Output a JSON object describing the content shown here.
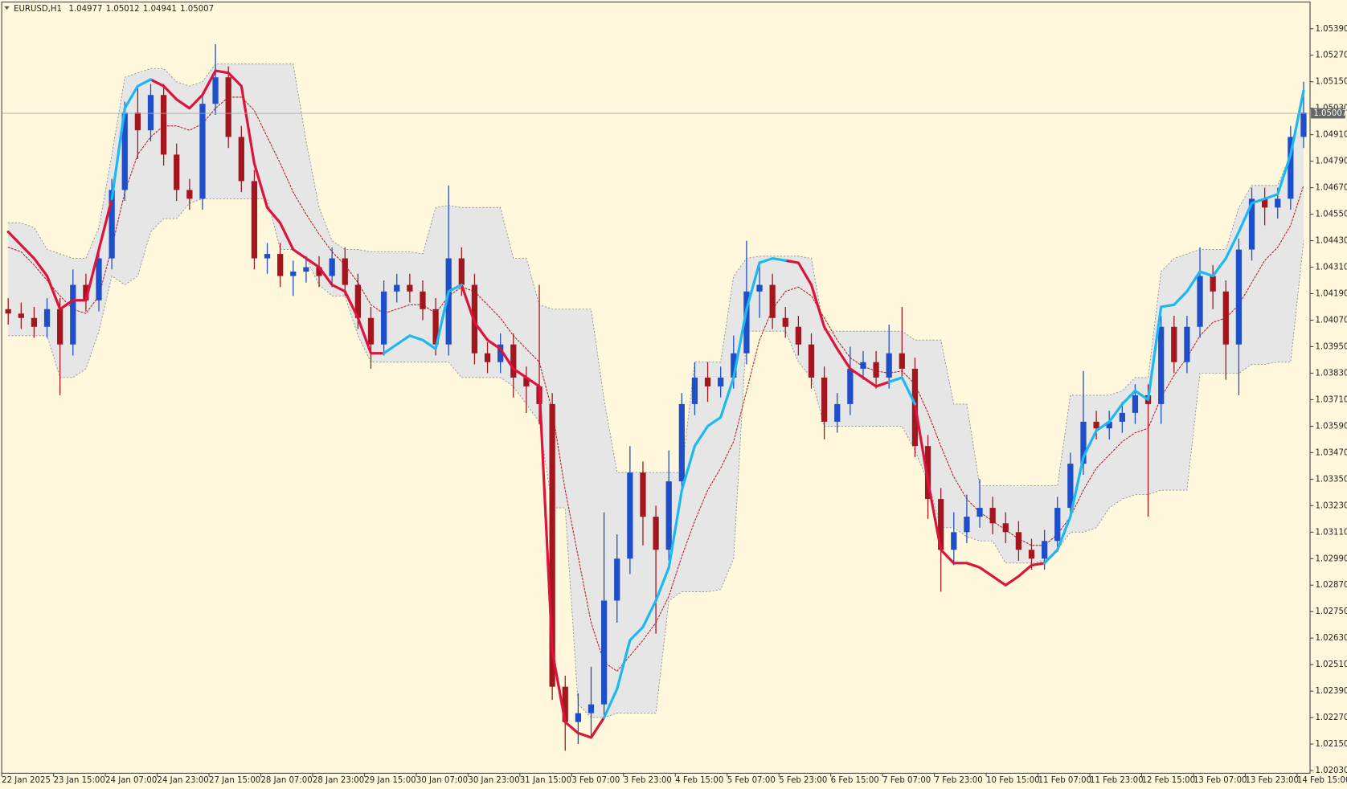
{
  "chart_data": {
    "type": "candlestick",
    "title": "EURUSD,H1",
    "ohlc": [
      1.04977,
      1.05012,
      1.04941,
      1.05007
    ],
    "categories": [
      "22 Jan 2025",
      null,
      null,
      null,
      "23 Jan 15:00",
      null,
      null,
      null,
      "24 Jan 07:00",
      null,
      null,
      null,
      "24 Jan 23:00",
      null,
      null,
      null,
      "27 Jan 15:00",
      null,
      null,
      null,
      "28 Jan 07:00",
      null,
      null,
      null,
      "28 Jan 23:00",
      null,
      null,
      null,
      "29 Jan 15:00",
      null,
      null,
      null,
      "30 Jan 07:00",
      null,
      null,
      null,
      "30 Jan 23:00",
      null,
      null,
      null,
      "31 Jan 15:00",
      null,
      null,
      null,
      "3 Feb 07:00",
      null,
      null,
      null,
      "3 Feb 23:00",
      null,
      null,
      null,
      "4 Feb 15:00",
      null,
      null,
      null,
      "5 Feb 07:00",
      null,
      null,
      null,
      "5 Feb 23:00",
      null,
      null,
      null,
      "6 Feb 15:00",
      null,
      null,
      null,
      "7 Feb 07:00",
      null,
      null,
      null,
      "7 Feb 23:00",
      null,
      null,
      null,
      "10 Feb 15:00",
      null,
      null,
      null,
      "11 Feb 07:00",
      null,
      null,
      null,
      "11 Feb 23:00",
      null,
      null,
      null,
      "12 Feb 15:00",
      null,
      null,
      null,
      "13 Feb 07:00",
      null,
      null,
      null,
      "13 Feb 23:00",
      null,
      null,
      null,
      "14 Feb 15:00"
    ],
    "open": [
      1.0412,
      1.041,
      1.0408,
      1.0404,
      1.0412,
      1.0396,
      1.0423,
      1.0416,
      1.0435,
      1.0466,
      1.0501,
      1.0493,
      1.0509,
      1.0482,
      1.0466,
      1.0462,
      1.0505,
      1.0517,
      1.049,
      1.047,
      1.0435,
      1.0437,
      1.0427,
      1.0429,
      1.0431,
      1.0427,
      1.0435,
      1.0423,
      1.0408,
      1.0396,
      1.042,
      1.0423,
      1.042,
      1.0412,
      1.0396,
      1.0435,
      1.0423,
      1.0392,
      1.0388,
      1.0396,
      1.0381,
      1.0377,
      1.0369,
      1.0241,
      1.0225,
      1.0229,
      1.0233,
      1.028,
      1.0299,
      1.0338,
      1.0318,
      1.0303,
      1.0334,
      1.0369,
      1.0381,
      1.0377,
      1.0381,
      1.0392,
      1.042,
      1.0423,
      1.0408,
      1.0404,
      1.0396,
      1.0381,
      1.0361,
      1.0369,
      1.0385,
      1.0388,
      1.0381,
      1.0392,
      1.0385,
      1.035,
      1.0326,
      1.0303,
      1.0311,
      1.0318,
      1.0322,
      1.0315,
      1.0311,
      1.0303,
      1.0299,
      1.0307,
      1.0322,
      1.0342,
      1.0361,
      1.0358,
      1.0361,
      1.0365,
      1.0373,
      1.0369,
      1.0404,
      1.0388,
      1.0404,
      1.0427,
      1.042,
      1.0396,
      1.0439,
      1.0462,
      1.0458,
      1.0462,
      1.049
    ],
    "high": [
      1.0417,
      1.0415,
      1.0413,
      1.0417,
      1.0417,
      1.043,
      1.0428,
      1.044,
      1.0471,
      1.0506,
      1.0512,
      1.0514,
      1.0514,
      1.0487,
      1.0471,
      1.051,
      1.0532,
      1.0522,
      1.0495,
      1.0475,
      1.0442,
      1.0442,
      1.0434,
      1.0436,
      1.0436,
      1.044,
      1.044,
      1.0428,
      1.0413,
      1.0425,
      1.0428,
      1.0428,
      1.0425,
      1.0417,
      1.0468,
      1.044,
      1.0428,
      1.0397,
      1.0401,
      1.0401,
      1.0386,
      1.0423,
      1.0374,
      1.0246,
      1.0238,
      1.025,
      1.032,
      1.031,
      1.035,
      1.0343,
      1.0323,
      1.0348,
      1.0374,
      1.0388,
      1.0388,
      1.0386,
      1.04,
      1.0443,
      1.0432,
      1.0428,
      1.0413,
      1.0409,
      1.0401,
      1.0386,
      1.0374,
      1.0395,
      1.0393,
      1.0393,
      1.0405,
      1.0413,
      1.039,
      1.0355,
      1.0331,
      1.032,
      1.0328,
      1.0335,
      1.0327,
      1.032,
      1.0316,
      1.0308,
      1.0312,
      1.0327,
      1.0347,
      1.0384,
      1.0366,
      1.0366,
      1.037,
      1.0378,
      1.0378,
      1.0409,
      1.0409,
      1.0409,
      1.044,
      1.0432,
      1.0425,
      1.0444,
      1.0467,
      1.0467,
      1.0467,
      1.0495,
      1.0515
    ],
    "low": [
      1.0405,
      1.0403,
      1.0399,
      1.0399,
      1.0373,
      1.0391,
      1.0411,
      1.0411,
      1.043,
      1.0461,
      1.048,
      1.0488,
      1.0477,
      1.0461,
      1.0457,
      1.0457,
      1.05,
      1.0485,
      1.0465,
      1.043,
      1.0428,
      1.0422,
      1.0418,
      1.0424,
      1.0422,
      1.0422,
      1.0418,
      1.0403,
      1.0385,
      1.0391,
      1.0415,
      1.0415,
      1.0407,
      1.0391,
      1.0391,
      1.0418,
      1.0387,
      1.0383,
      1.0383,
      1.0372,
      1.0365,
      1.036,
      1.0235,
      1.0212,
      1.0215,
      1.0218,
      1.0228,
      1.027,
      1.0292,
      1.0305,
      1.0265,
      1.0298,
      1.0329,
      1.0364,
      1.037,
      1.0372,
      1.0376,
      1.0387,
      1.0408,
      1.0403,
      1.0399,
      1.0391,
      1.0376,
      1.0353,
      1.0356,
      1.0364,
      1.038,
      1.0376,
      1.0376,
      1.038,
      1.0345,
      1.0317,
      1.0284,
      1.0296,
      1.0306,
      1.0313,
      1.031,
      1.0306,
      1.0298,
      1.0294,
      1.0294,
      1.0302,
      1.0317,
      1.0337,
      1.0353,
      1.0353,
      1.0356,
      1.036,
      1.0318,
      1.036,
      1.0383,
      1.0383,
      1.0399,
      1.0412,
      1.038,
      1.0373,
      1.0434,
      1.045,
      1.0453,
      1.0457,
      1.0485
    ],
    "close": [
      1.041,
      1.0408,
      1.0404,
      1.0412,
      1.0396,
      1.0423,
      1.0416,
      1.0435,
      1.0466,
      1.0501,
      1.0493,
      1.0509,
      1.0482,
      1.0466,
      1.0462,
      1.0505,
      1.0517,
      1.049,
      1.047,
      1.0435,
      1.0437,
      1.0427,
      1.0429,
      1.0431,
      1.0427,
      1.0435,
      1.0423,
      1.0408,
      1.0396,
      1.042,
      1.0423,
      1.042,
      1.0412,
      1.0396,
      1.0435,
      1.0423,
      1.0392,
      1.0388,
      1.0396,
      1.0381,
      1.0377,
      1.0369,
      1.0241,
      1.0225,
      1.0229,
      1.0233,
      1.028,
      1.0299,
      1.0338,
      1.0318,
      1.0303,
      1.0334,
      1.0369,
      1.0381,
      1.0377,
      1.0381,
      1.0392,
      1.042,
      1.0423,
      1.0408,
      1.0404,
      1.0396,
      1.0381,
      1.0361,
      1.0369,
      1.0385,
      1.0388,
      1.0381,
      1.0392,
      1.0385,
      1.035,
      1.0326,
      1.0303,
      1.0311,
      1.0318,
      1.0322,
      1.0315,
      1.0311,
      1.0303,
      1.0299,
      1.0307,
      1.0322,
      1.0342,
      1.0361,
      1.0358,
      1.0361,
      1.0365,
      1.0373,
      1.0369,
      1.0404,
      1.0388,
      1.0404,
      1.0427,
      1.042,
      1.0396,
      1.0439,
      1.0462,
      1.0458,
      1.0462,
      1.049,
      1.0501
    ],
    "up_color": "#1e4fc8",
    "down_color": "#a3161e",
    "band": {
      "color": "#e6e6e6",
      "edge_color": "#8a8a8a",
      "upper": [
        1.0451,
        1.0451,
        1.0449,
        1.0439,
        1.0437,
        1.0435,
        1.0435,
        1.0449,
        1.0482,
        1.0517,
        1.0519,
        1.0521,
        1.0521,
        1.0515,
        1.0513,
        1.0515,
        1.0523,
        1.0523,
        1.0523,
        1.0523,
        1.0523,
        1.0523,
        1.0523,
        1.0488,
        1.0458,
        1.0443,
        1.0439,
        1.0439,
        1.0438,
        1.0438,
        1.0438,
        1.0438,
        1.0437,
        1.0458,
        1.0459,
        1.0458,
        1.0458,
        1.0458,
        1.0458,
        1.0435,
        1.0435,
        1.0414,
        1.0412,
        1.0412,
        1.0412,
        1.0412,
        1.0371,
        1.0338,
        1.0338,
        1.0338,
        1.0338,
        1.0338,
        1.0338,
        1.0388,
        1.0388,
        1.0388,
        1.0427,
        1.0435,
        1.0436,
        1.0436,
        1.0436,
        1.0436,
        1.0435,
        1.0402,
        1.0402,
        1.0402,
        1.0402,
        1.0402,
        1.0402,
        1.0402,
        1.0398,
        1.0398,
        1.0398,
        1.0369,
        1.0369,
        1.0332,
        1.0332,
        1.0332,
        1.0332,
        1.0332,
        1.0332,
        1.0332,
        1.0373,
        1.0373,
        1.0373,
        1.0373,
        1.0375,
        1.0381,
        1.0381,
        1.0429,
        1.0435,
        1.0437,
        1.0439,
        1.0439,
        1.0439,
        1.0458,
        1.0468,
        1.0468,
        1.0468,
        1.0482,
        1.0511
      ],
      "lower": [
        1.04,
        1.04,
        1.04,
        1.04,
        1.0381,
        1.0381,
        1.0385,
        1.0402,
        1.0427,
        1.0423,
        1.0427,
        1.0447,
        1.0453,
        1.0453,
        1.046,
        1.0462,
        1.0462,
        1.0462,
        1.0462,
        1.0462,
        1.0462,
        1.0439,
        1.0439,
        1.0435,
        1.0423,
        1.0418,
        1.0418,
        1.04,
        1.0388,
        1.0388,
        1.0388,
        1.0388,
        1.0388,
        1.0388,
        1.0388,
        1.0381,
        1.0381,
        1.0381,
        1.0381,
        1.0377,
        1.0369,
        1.0361,
        1.0322,
        1.0322,
        1.0233,
        1.0227,
        1.0227,
        1.0229,
        1.0229,
        1.0229,
        1.0229,
        1.028,
        1.0284,
        1.0284,
        1.0284,
        1.0285,
        1.0299,
        1.0402,
        1.0402,
        1.0402,
        1.0402,
        1.0388,
        1.0381,
        1.0359,
        1.0359,
        1.0359,
        1.0359,
        1.0359,
        1.0359,
        1.0359,
        1.0348,
        1.0334,
        1.0313,
        1.0313,
        1.0309,
        1.0307,
        1.0307,
        1.0297,
        1.0297,
        1.0297,
        1.0298,
        1.0303,
        1.0311,
        1.0311,
        1.0313,
        1.0322,
        1.0326,
        1.0328,
        1.0328,
        1.033,
        1.033,
        1.033,
        1.0383,
        1.0383,
        1.0383,
        1.0383,
        1.0387,
        1.0387,
        1.0388,
        1.0388,
        1.0443
      ]
    },
    "series": [
      {
        "color": "#dc143c",
        "width": 3,
        "dash": false,
        "values": [
          1.0447,
          1.0441,
          1.0435,
          1.0427,
          1.0412,
          1.0416,
          1.0416,
          1.0439,
          1.0462,
          null,
          null,
          1.0516,
          1.0513,
          1.0507,
          1.0503,
          1.0509,
          1.052,
          1.0519,
          1.0513,
          1.0478,
          1.0458,
          1.0451,
          1.0439,
          1.0435,
          1.0431,
          1.0423,
          1.042,
          1.0408,
          1.0392,
          1.0392,
          null,
          null,
          null,
          null,
          null,
          1.0423,
          1.0406,
          1.0398,
          1.0394,
          1.0385,
          1.0381,
          1.0377,
          1.0257,
          1.0225,
          1.022,
          1.0218,
          1.0227,
          null,
          null,
          null,
          null,
          null,
          null,
          null,
          null,
          null,
          null,
          null,
          null,
          null,
          1.0434,
          1.0433,
          1.0423,
          1.0404,
          1.0394,
          1.0385,
          1.0381,
          1.0377,
          1.0379,
          null,
          1.0369,
          1.0334,
          1.0303,
          1.0297,
          1.0297,
          1.0295,
          1.0291,
          1.0287,
          1.0291,
          1.0296,
          1.0297,
          null,
          null,
          null,
          null,
          null,
          null,
          null,
          null,
          null,
          null,
          null,
          null,
          null,
          null,
          null,
          null,
          null,
          null,
          null,
          null
        ]
      },
      {
        "color": "#1cb8ee",
        "width": 3,
        "dash": false,
        "values": [
          null,
          null,
          null,
          null,
          null,
          null,
          null,
          null,
          1.0462,
          1.0503,
          1.0513,
          1.0516,
          null,
          null,
          null,
          null,
          null,
          null,
          null,
          null,
          null,
          null,
          null,
          null,
          null,
          null,
          null,
          null,
          null,
          1.0392,
          1.0396,
          1.04,
          1.0398,
          1.0394,
          1.042,
          1.0423,
          null,
          null,
          null,
          null,
          null,
          null,
          null,
          null,
          null,
          null,
          1.0227,
          1.024,
          1.0262,
          1.0268,
          1.028,
          1.0295,
          1.033,
          1.035,
          1.0359,
          1.0363,
          1.0381,
          1.0412,
          1.0433,
          1.0435,
          1.0434,
          null,
          null,
          null,
          null,
          null,
          null,
          null,
          1.0379,
          1.0381,
          1.0369,
          null,
          null,
          null,
          null,
          null,
          null,
          null,
          null,
          null,
          1.0297,
          1.0303,
          1.0318,
          1.0345,
          1.0357,
          1.0361,
          1.0369,
          1.0375,
          1.0371,
          1.0413,
          1.0414,
          1.042,
          1.0429,
          1.0427,
          1.0435,
          1.0447,
          1.046,
          1.0462,
          1.0464,
          1.0482,
          1.0511
        ]
      },
      {
        "color": "#b22222",
        "width": 1,
        "dash": true,
        "values": [
          1.044,
          1.0438,
          1.0432,
          1.0425,
          1.0418,
          1.0412,
          1.041,
          1.0418,
          1.044,
          1.0465,
          1.0482,
          1.049,
          1.0495,
          1.0495,
          1.0493,
          1.0496,
          1.0503,
          1.0508,
          1.0508,
          1.0502,
          1.049,
          1.0478,
          1.0465,
          1.0455,
          1.0446,
          1.0438,
          1.0432,
          1.0424,
          1.0414,
          1.041,
          1.0412,
          1.0414,
          1.0414,
          1.041,
          1.0418,
          1.0422,
          1.042,
          1.0414,
          1.0408,
          1.04,
          1.0394,
          1.0388,
          1.0366,
          1.033,
          1.03,
          1.027,
          1.0252,
          1.0248,
          1.0255,
          1.0262,
          1.027,
          1.0282,
          1.03,
          1.0316,
          1.033,
          1.034,
          1.0352,
          1.0375,
          1.0398,
          1.0412,
          1.042,
          1.0422,
          1.0418,
          1.0408,
          1.0398,
          1.039,
          1.0386,
          1.0384,
          1.0383,
          1.0384,
          1.0378,
          1.0365,
          1.035,
          1.0336,
          1.0326,
          1.032,
          1.0316,
          1.0312,
          1.0308,
          1.0305,
          1.0305,
          1.031,
          1.0318,
          1.033,
          1.034,
          1.0346,
          1.0352,
          1.0356,
          1.0358,
          1.0372,
          1.0382,
          1.039,
          1.04,
          1.0406,
          1.0408,
          1.0414,
          1.0424,
          1.0434,
          1.044,
          1.045,
          1.0468
        ]
      }
    ],
    "ylim": [
      1.02018,
      1.05511
    ],
    "yticks": [
      {
        "value": 1.0539,
        "label": "1.05390"
      },
      {
        "value": 1.0527,
        "label": "1.05270"
      },
      {
        "value": 1.0515,
        "label": "1.05150"
      },
      {
        "value": 1.0503,
        "label": "1.05030"
      },
      {
        "value": 1.0491,
        "label": "1.04910"
      },
      {
        "value": 1.0479,
        "label": "1.04790"
      },
      {
        "value": 1.0467,
        "label": "1.04670"
      },
      {
        "value": 1.0455,
        "label": "1.04550"
      },
      {
        "value": 1.0443,
        "label": "1.04430"
      },
      {
        "value": 1.0431,
        "label": "1.04310"
      },
      {
        "value": 1.0419,
        "label": "1.04190"
      },
      {
        "value": 1.0407,
        "label": "1.04070"
      },
      {
        "value": 1.0395,
        "label": "1.03950"
      },
      {
        "value": 1.0383,
        "label": "1.03830"
      },
      {
        "value": 1.0371,
        "label": "1.03710"
      },
      {
        "value": 1.0359,
        "label": "1.03590"
      },
      {
        "value": 1.0347,
        "label": "1.03470"
      },
      {
        "value": 1.0335,
        "label": "1.03350"
      },
      {
        "value": 1.0323,
        "label": "1.03230"
      },
      {
        "value": 1.0311,
        "label": "1.03110"
      },
      {
        "value": 1.0299,
        "label": "1.02990"
      },
      {
        "value": 1.0287,
        "label": "1.02870"
      },
      {
        "value": 1.0275,
        "label": "1.02750"
      },
      {
        "value": 1.0263,
        "label": "1.02630"
      },
      {
        "value": 1.0251,
        "label": "1.02510"
      },
      {
        "value": 1.0239,
        "label": "1.02390"
      },
      {
        "value": 1.0227,
        "label": "1.02270"
      },
      {
        "value": 1.0215,
        "label": "1.02150"
      },
      {
        "value": 1.0203,
        "label": "1.02030"
      }
    ],
    "grid": false
  }
}
